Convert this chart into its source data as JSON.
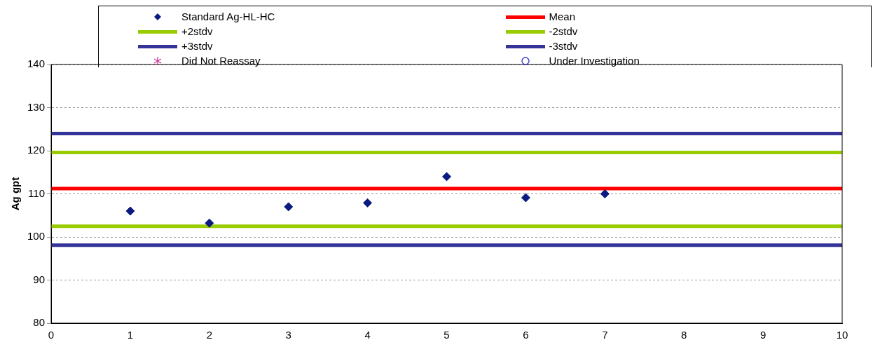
{
  "chart_data": {
    "type": "scatter",
    "ylabel": "Ag gpt",
    "x": [
      1,
      2,
      3,
      4,
      5,
      6,
      7
    ],
    "xlim": [
      0,
      10
    ],
    "xticks": [
      0,
      1,
      2,
      3,
      4,
      5,
      6,
      7,
      8,
      9,
      10
    ],
    "ylim": [
      80,
      140
    ],
    "yticks": [
      80,
      90,
      100,
      110,
      120,
      130,
      140
    ],
    "grid": "y",
    "legend": "top",
    "series": [
      {
        "name": "Standard Ag-HL-HC",
        "color": "#0a1a80",
        "marker": "diamond",
        "values": [
          106,
          103.2,
          107,
          107.9,
          114,
          109.1,
          110
        ]
      },
      {
        "name": "Did Not Reassay",
        "color": "#cc3399",
        "marker": "star",
        "values": [
          null,
          null,
          null,
          null,
          null,
          null,
          null
        ]
      },
      {
        "name": "Under Investigation",
        "color": "#3333cc",
        "marker": "circle",
        "values": [
          null,
          null,
          null,
          null,
          null,
          null,
          null
        ]
      }
    ],
    "ref_lines": [
      {
        "axis": "y",
        "value": 111.2,
        "label": "Mean",
        "color": "#ff0000"
      },
      {
        "axis": "y",
        "value": 119.6,
        "label": "+2stdv",
        "color": "#99cc00"
      },
      {
        "axis": "y",
        "value": 102.5,
        "label": "-2stdv",
        "color": "#99cc00"
      },
      {
        "axis": "y",
        "value": 124,
        "label": "+3stdv",
        "color": "#333399"
      },
      {
        "axis": "y",
        "value": 98.1,
        "label": "-3stdv",
        "color": "#333399"
      }
    ]
  }
}
